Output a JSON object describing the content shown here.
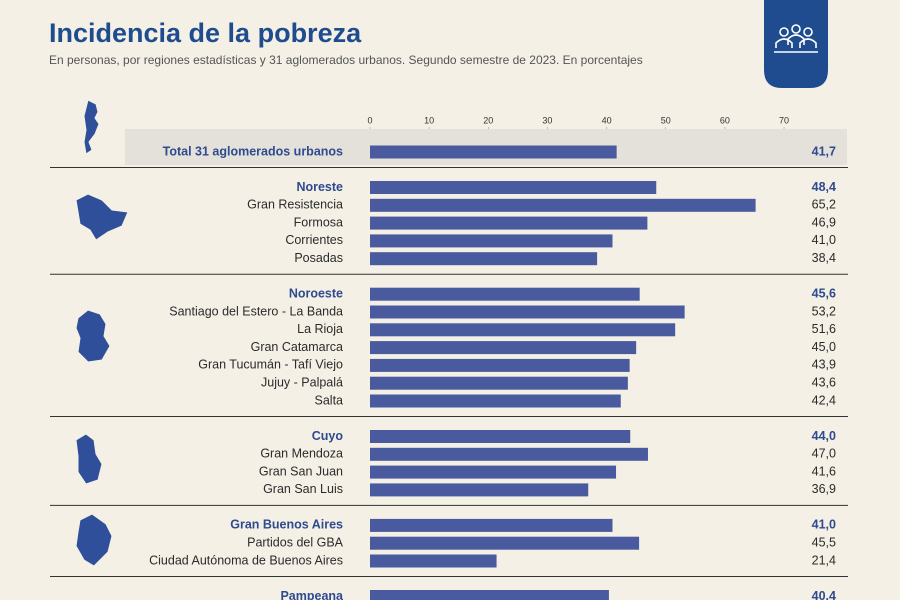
{
  "chart_data": {
    "type": "bar",
    "orientation": "horizontal",
    "title": "Incidencia de la pobreza",
    "subtitle": "En personas, por regiones estadísticas y 31 aglomerados urbanos. Segundo semestre de 2023. En porcentajes",
    "xlim": [
      0,
      70
    ],
    "xticks": [
      0,
      10,
      20,
      30,
      40,
      50,
      60,
      70
    ],
    "color": "#4a5a9e",
    "header_color": "#2f4a8f",
    "sections": [
      {
        "categories": [
          "Total 31 aglomerados urbanos"
        ],
        "values": [
          41.7
        ],
        "value_labels": [
          "41,7"
        ]
      },
      {
        "categories": [
          "Noreste",
          "Gran Resistencia",
          "Formosa",
          "Corrientes",
          "Posadas"
        ],
        "values": [
          48.4,
          65.2,
          46.9,
          41.0,
          38.4
        ],
        "value_labels": [
          "48,4",
          "65,2",
          "46,9",
          "41,0",
          "38,4"
        ]
      },
      {
        "categories": [
          "Noroeste",
          "Santiago del Estero - La Banda",
          "La Rioja",
          "Gran Catamarca",
          "Gran Tucumán - Tafí Viejo",
          "Jujuy -  Palpalá",
          "Salta"
        ],
        "values": [
          45.6,
          53.2,
          51.6,
          45.0,
          43.9,
          43.6,
          42.4
        ],
        "value_labels": [
          "45,6",
          "53,2",
          "51,6",
          "45,0",
          "43,9",
          "43,6",
          "42,4"
        ]
      },
      {
        "categories": [
          "Cuyo",
          "Gran Mendoza",
          "Gran San Juan",
          "Gran San Luis"
        ],
        "values": [
          44.0,
          47.0,
          41.6,
          36.9
        ],
        "value_labels": [
          "44,0",
          "47,0",
          "41,6",
          "36,9"
        ]
      },
      {
        "categories": [
          "Gran Buenos Aires",
          "Partidos del GBA",
          "Ciudad Autónoma de Buenos Aires"
        ],
        "values": [
          41.0,
          45.5,
          21.4
        ],
        "value_labels": [
          "41,0",
          "45,5",
          "21,4"
        ]
      },
      {
        "categories": [
          "Pampeana"
        ],
        "values": [
          40.4
        ],
        "value_labels": [
          "40,4"
        ]
      }
    ]
  }
}
